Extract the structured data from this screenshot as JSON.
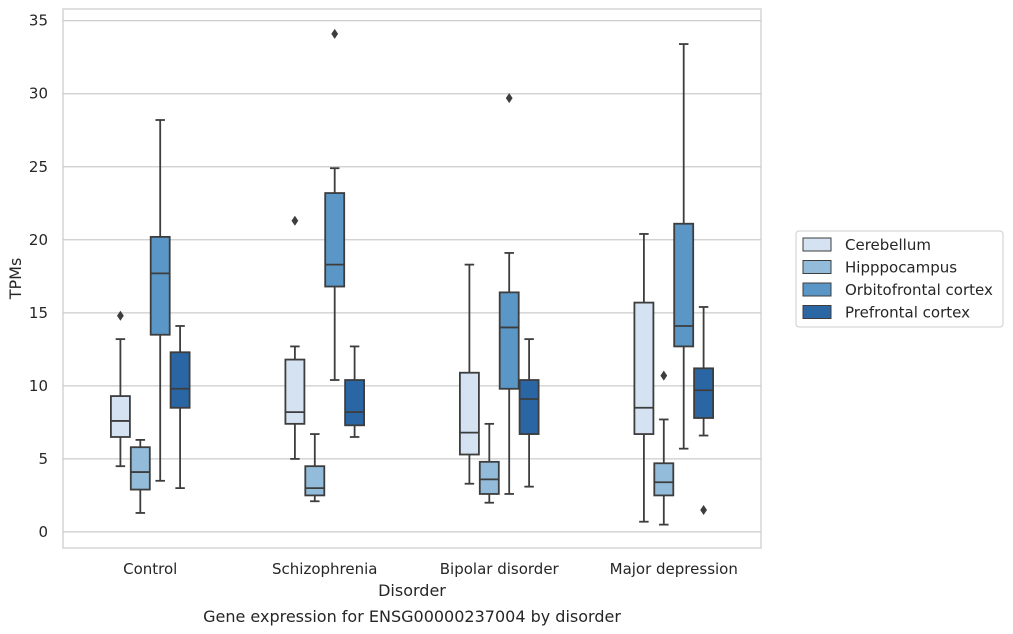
{
  "chart_data": {
    "type": "boxplot",
    "caption": "Gene expression for ENSG00000237004 by disorder",
    "xlabel": "Disorder",
    "ylabel": "TPMs",
    "ylim": [
      -1.1,
      35.8
    ],
    "yticks": [
      0,
      5,
      10,
      15,
      20,
      25,
      30,
      35
    ],
    "grid": true,
    "legend_position": "right",
    "categories": [
      "Control",
      "Schizophrenia",
      "Bipolar disorder",
      "Major depression"
    ],
    "series": [
      {
        "name": "Cerebellum",
        "color": "#d4e2f1",
        "boxes": [
          {
            "whislo": 4.5,
            "q1": 6.5,
            "med": 7.6,
            "q3": 9.3,
            "whishi": 13.2,
            "fliers": [
              14.8
            ]
          },
          {
            "whislo": 5.0,
            "q1": 7.4,
            "med": 8.2,
            "q3": 11.8,
            "whishi": 12.7,
            "fliers": [
              21.3
            ]
          },
          {
            "whislo": 3.3,
            "q1": 5.3,
            "med": 6.8,
            "q3": 10.9,
            "whishi": 18.3,
            "fliers": []
          },
          {
            "whislo": 0.7,
            "q1": 6.7,
            "med": 8.5,
            "q3": 15.7,
            "whishi": 20.4,
            "fliers": []
          }
        ]
      },
      {
        "name": "Hipppocampus",
        "color": "#93bcdb",
        "boxes": [
          {
            "whislo": 1.3,
            "q1": 2.9,
            "med": 4.1,
            "q3": 5.8,
            "whishi": 6.3,
            "fliers": []
          },
          {
            "whislo": 2.1,
            "q1": 2.5,
            "med": 3.0,
            "q3": 4.5,
            "whishi": 6.7,
            "fliers": []
          },
          {
            "whislo": 2.0,
            "q1": 2.6,
            "med": 3.6,
            "q3": 4.8,
            "whishi": 7.4,
            "fliers": []
          },
          {
            "whislo": 0.5,
            "q1": 2.5,
            "med": 3.4,
            "q3": 4.7,
            "whishi": 7.7,
            "fliers": [
              10.7
            ]
          }
        ]
      },
      {
        "name": "Orbitofrontal cortex",
        "color": "#5a97c6",
        "boxes": [
          {
            "whislo": 3.5,
            "q1": 13.5,
            "med": 17.7,
            "q3": 20.2,
            "whishi": 28.2,
            "fliers": []
          },
          {
            "whislo": 10.4,
            "q1": 16.8,
            "med": 18.3,
            "q3": 23.2,
            "whishi": 24.9,
            "fliers": [
              34.1
            ]
          },
          {
            "whislo": 2.6,
            "q1": 9.8,
            "med": 14.0,
            "q3": 16.4,
            "whishi": 19.1,
            "fliers": [
              29.7
            ]
          },
          {
            "whislo": 5.7,
            "q1": 12.7,
            "med": 14.1,
            "q3": 21.1,
            "whishi": 33.4,
            "fliers": []
          }
        ]
      },
      {
        "name": "Prefrontal cortex",
        "color": "#2a66a3",
        "boxes": [
          {
            "whislo": 3.0,
            "q1": 8.5,
            "med": 9.8,
            "q3": 12.3,
            "whishi": 14.1,
            "fliers": []
          },
          {
            "whislo": 6.5,
            "q1": 7.3,
            "med": 8.2,
            "q3": 10.4,
            "whishi": 12.7,
            "fliers": []
          },
          {
            "whislo": 3.1,
            "q1": 6.7,
            "med": 9.1,
            "q3": 10.4,
            "whishi": 13.2,
            "fliers": []
          },
          {
            "whislo": 6.6,
            "q1": 7.8,
            "med": 9.7,
            "q3": 11.2,
            "whishi": 15.4,
            "fliers": [
              1.5
            ]
          }
        ]
      }
    ]
  }
}
